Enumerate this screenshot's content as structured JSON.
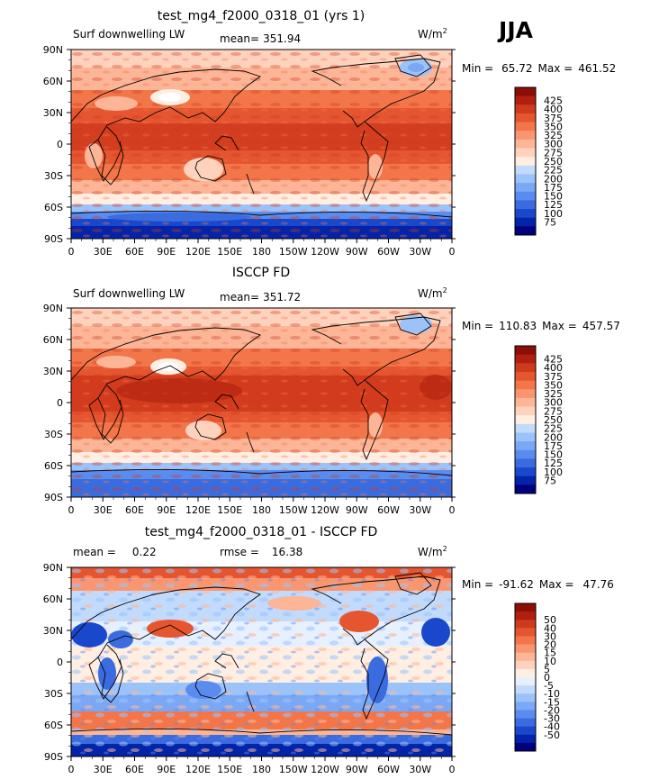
{
  "season": "JJA",
  "unit": "W/m",
  "unit_exp": "2",
  "colors": {
    "abs": [
      "#00007f",
      "#0324a8",
      "#1a48cc",
      "#3a6ce0",
      "#5a8cf0",
      "#7aa8f5",
      "#9cc2fa",
      "#c2dbfc",
      "#ffeee2",
      "#ffd2bd",
      "#fcb596",
      "#f99670",
      "#f27649",
      "#e55630",
      "#cf3a1c",
      "#b01f0f",
      "#8c0f06"
    ],
    "diff": [
      "#00007f",
      "#0324a8",
      "#1a48cc",
      "#3a6ce0",
      "#5a8cf0",
      "#7aa8f5",
      "#9cc2fa",
      "#c2dbfc",
      "#e6f0ff",
      "#ffeee2",
      "#ffd2bd",
      "#fcb596",
      "#f99670",
      "#f27649",
      "#e55630",
      "#cf3a1c",
      "#b01f0f",
      "#8c0f06"
    ],
    "coast": "#000000"
  },
  "chart_data": [
    {
      "type": "heatmap",
      "title": "test_mg4_f2000_0318_01 (yrs 1)",
      "left_label": "Surf downwelling LW",
      "stat_label": "mean=",
      "stat_value": "351.94",
      "min_label": "Min =",
      "min_value": "65.72",
      "max_label": "Max =",
      "max_value": "461.52",
      "xlabels": [
        "0",
        "30E",
        "60E",
        "90E",
        "120E",
        "150E",
        "180",
        "150W",
        "120W",
        "90W",
        "60W",
        "30W",
        "0"
      ],
      "ylabels": [
        "90N",
        "60N",
        "30N",
        "0",
        "30S",
        "60S",
        "90S"
      ],
      "levels": [
        "425",
        "400",
        "375",
        "350",
        "325",
        "300",
        "275",
        "250",
        "225",
        "200",
        "175",
        "150",
        "125",
        "100",
        "75"
      ]
    },
    {
      "type": "heatmap",
      "title": "ISCCP FD",
      "left_label": "Surf downwelling LW",
      "stat_label": "mean=",
      "stat_value": "351.72",
      "min_label": "Min =",
      "min_value": "110.83",
      "max_label": "Max =",
      "max_value": "457.57",
      "xlabels": [
        "0",
        "30E",
        "60E",
        "90E",
        "120E",
        "150E",
        "180",
        "150W",
        "120W",
        "90W",
        "60W",
        "30W",
        "0"
      ],
      "ylabels": [
        "90N",
        "60N",
        "30N",
        "0",
        "30S",
        "60S",
        "90S"
      ],
      "levels": [
        "425",
        "400",
        "375",
        "350",
        "325",
        "300",
        "275",
        "250",
        "225",
        "200",
        "175",
        "150",
        "125",
        "100",
        "75"
      ]
    },
    {
      "type": "heatmap",
      "title": "test_mg4_f2000_0318_01 - ISCCP FD",
      "left_label": "mean =",
      "left_value": "0.22",
      "stat_label": "rmse =",
      "stat_value": "16.38",
      "min_label": "Min =",
      "min_value": "-91.62",
      "max_label": "Max =",
      "max_value": "47.76",
      "xlabels": [
        "0",
        "30E",
        "60E",
        "90E",
        "120E",
        "150E",
        "180",
        "150W",
        "120W",
        "90W",
        "60W",
        "30W",
        "0"
      ],
      "ylabels": [
        "90N",
        "60N",
        "30N",
        "0",
        "30S",
        "60S",
        "90S"
      ],
      "levels": [
        "50",
        "40",
        "30",
        "20",
        "15",
        "10",
        "5",
        "0",
        "-5",
        "-10",
        "-15",
        "-20",
        "-30",
        "-40",
        "-50"
      ]
    }
  ]
}
